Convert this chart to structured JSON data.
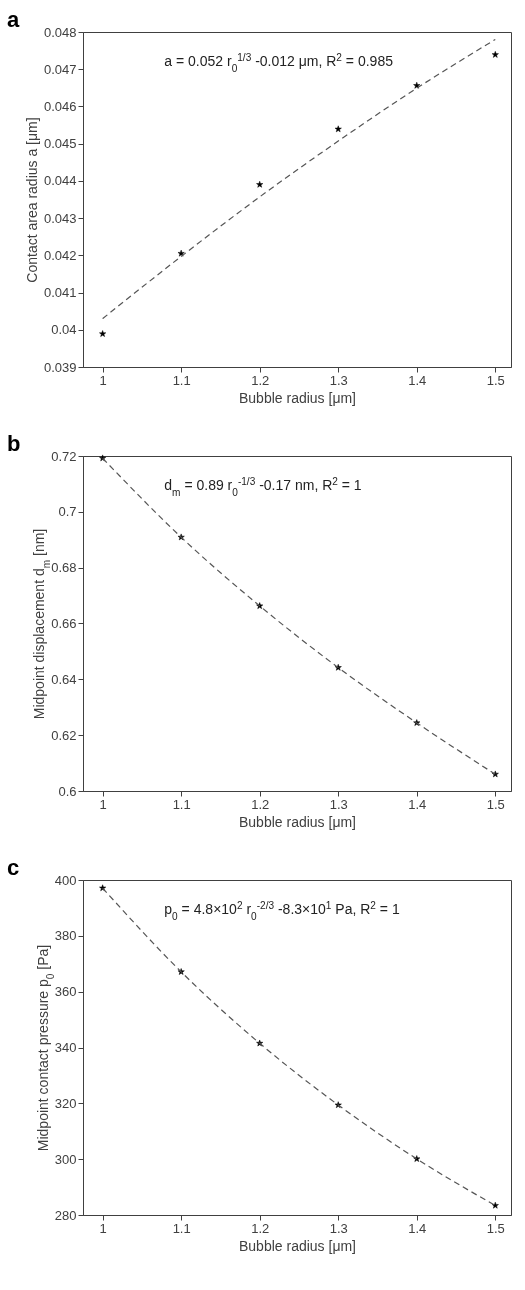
{
  "chart_data": [
    {
      "type": "scatter",
      "title": "a",
      "xlabel": "Bubble radius [μm]",
      "ylabel": "Contact area radius a [μm]",
      "annotations": [
        "a = 0.052 r$_{0}$$^{1/3}$ -0.012 μm, R$^{2}$ = 0.985"
      ],
      "xlim": [
        0.975,
        1.52
      ],
      "xticks": [
        1,
        1.1,
        1.2,
        1.3,
        1.4,
        1.5
      ],
      "ylim": [
        0.039,
        0.048
      ],
      "yticks": [
        0.039,
        0.04,
        0.041,
        0.042,
        0.043,
        0.044,
        0.045,
        0.046,
        0.047,
        0.048
      ],
      "series": [
        {
          "type": "scatter",
          "color": "#000000",
          "marker": "star",
          "x": [
            1,
            1.1,
            1.2,
            1.3,
            1.4,
            1.5
          ],
          "values": [
            0.03989,
            0.04205,
            0.0439,
            0.04539,
            0.04656,
            0.04739
          ]
        },
        {
          "type": "line",
          "color": "#555555",
          "line_style": "dashed",
          "marker": "none",
          "x": [
            1,
            1.1,
            1.2,
            1.3,
            1.4,
            1.5
          ],
          "values": [
            0.0403,
            0.04197,
            0.04357,
            0.04507,
            0.04649,
            0.0478
          ]
        }
      ]
    },
    {
      "type": "scatter",
      "title": "b",
      "xlabel": "Bubble radius [μm]",
      "ylabel": "Midpoint displacement d$_{m}$ [nm]",
      "annotations": [
        "d$_{m}$ = 0.89 r$_{0}$$^{-1/3}$ -0.17 nm, R$^{2}$ = 1"
      ],
      "xlim": [
        0.975,
        1.52
      ],
      "xticks": [
        1,
        1.1,
        1.2,
        1.3,
        1.4,
        1.5
      ],
      "ylim": [
        0.6,
        0.72
      ],
      "yticks": [
        0.6,
        0.62,
        0.64,
        0.66,
        0.68,
        0.7,
        0.72
      ],
      "series": [
        {
          "type": "scatter",
          "color": "#000000",
          "marker": "star",
          "x": [
            1,
            1.1,
            1.2,
            1.3,
            1.4,
            1.5
          ],
          "values": [
            0.7192,
            0.6909,
            0.6663,
            0.6442,
            0.6244,
            0.606
          ]
        },
        {
          "type": "line",
          "color": "#555555",
          "line_style": "dashed",
          "marker": "none",
          "x": [
            1,
            1.1,
            1.2,
            1.3,
            1.4,
            1.5
          ],
          "values": [
            0.7192,
            0.6909,
            0.6663,
            0.6442,
            0.6244,
            0.606
          ]
        }
      ]
    },
    {
      "type": "scatter",
      "title": "c",
      "xlabel": "Bubble radius [μm]",
      "ylabel": "Midpoint contact pressure p$_{0}$ [Pa]",
      "annotations": [
        "p$_{0}$ = 4.8×10$^{2}$ r$_{0}$$^{-2/3}$ -8.3×10$^{1}$ Pa, R$^{2}$ = 1"
      ],
      "xlim": [
        0.975,
        1.52
      ],
      "xticks": [
        1,
        1.1,
        1.2,
        1.3,
        1.4,
        1.5
      ],
      "ylim": [
        280,
        400
      ],
      "yticks": [
        280,
        300,
        320,
        340,
        360,
        380,
        400
      ],
      "series": [
        {
          "type": "scatter",
          "color": "#000000",
          "marker": "star",
          "x": [
            1,
            1.1,
            1.2,
            1.3,
            1.4,
            1.5
          ],
          "values": [
            397.1,
            367.1,
            341.5,
            319.4,
            300.1,
            283.4
          ]
        },
        {
          "type": "line",
          "color": "#555555",
          "line_style": "dashed",
          "marker": "none",
          "x": [
            1,
            1.1,
            1.2,
            1.3,
            1.4,
            1.5
          ],
          "values": [
            397.1,
            367.1,
            341.5,
            319.4,
            300.1,
            283.4
          ]
        }
      ]
    }
  ]
}
